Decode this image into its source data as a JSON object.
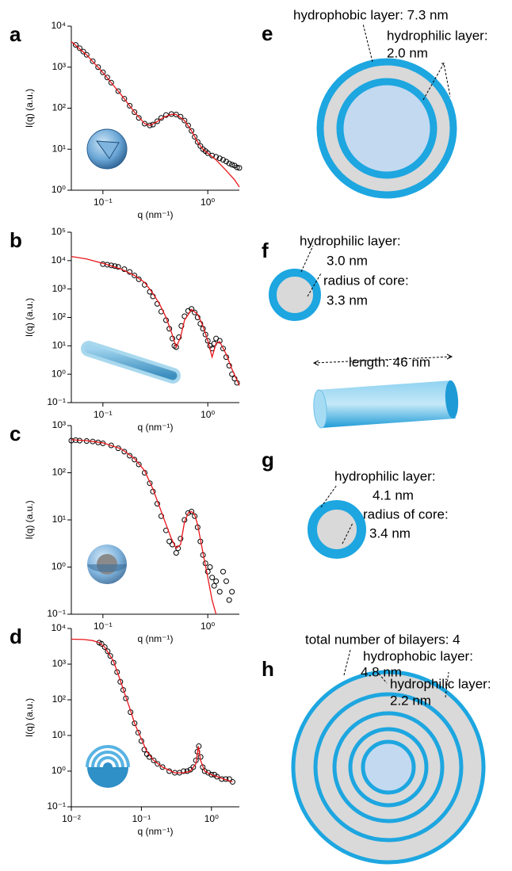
{
  "chart_data": [
    {
      "type": "scatter",
      "panel": "a",
      "x_label": "q (nm⁻¹)",
      "y_label": "I(q) (a.u.)",
      "log_x": true,
      "log_y": true,
      "xlim": [
        0.05,
        2
      ],
      "ylim": [
        1,
        10000
      ],
      "xticks": [
        {
          "value": 0.1,
          "label": "10⁻¹"
        },
        {
          "value": 1,
          "label": "10⁰"
        }
      ],
      "yticks": [
        {
          "value": 1,
          "label": "10⁰"
        },
        {
          "value": 10,
          "label": "10¹"
        },
        {
          "value": 100,
          "label": "10²"
        },
        {
          "value": 1000,
          "label": "10³"
        },
        {
          "value": 10000,
          "label": "10⁴"
        }
      ],
      "series": [
        {
          "color": "#000000",
          "style": "open-circle",
          "x": [
            0.055,
            0.06,
            0.065,
            0.07,
            0.08,
            0.09,
            0.1,
            0.11,
            0.12,
            0.14,
            0.16,
            0.18,
            0.2,
            0.22,
            0.25,
            0.28,
            0.3,
            0.33,
            0.36,
            0.4,
            0.45,
            0.5,
            0.55,
            0.6,
            0.65,
            0.7,
            0.75,
            0.8,
            0.85,
            0.9,
            0.95,
            1.0,
            1.1,
            1.2,
            1.3,
            1.4,
            1.5,
            1.6,
            1.7,
            1.8,
            1.9,
            2.0
          ],
          "values": [
            3500,
            2900,
            2400,
            2000,
            1400,
            1000,
            750,
            560,
            420,
            260,
            170,
            115,
            80,
            58,
            42,
            38,
            40,
            48,
            58,
            68,
            72,
            70,
            62,
            50,
            38,
            28,
            20,
            15,
            12,
            10,
            9,
            8,
            7,
            6.5,
            6,
            5.5,
            5,
            4.5,
            4.2,
            4,
            3.6,
            3.5
          ]
        },
        {
          "color": "#e8161b",
          "style": "line",
          "x": [
            0.05,
            0.07,
            0.1,
            0.15,
            0.2,
            0.25,
            0.28,
            0.32,
            0.38,
            0.45,
            0.5,
            0.6,
            0.7,
            0.8,
            0.9,
            1.0,
            1.2,
            1.5,
            1.8,
            2.0
          ],
          "values": [
            4200,
            2000,
            740,
            210,
            80,
            42,
            38,
            45,
            60,
            71,
            70,
            50,
            28,
            15,
            10,
            8,
            5.5,
            3,
            1.8,
            1.2
          ]
        }
      ]
    },
    {
      "type": "scatter",
      "panel": "b",
      "x_label": "q (nm⁻¹)",
      "y_label": "I(q) (a.u.)",
      "log_x": true,
      "log_y": true,
      "xlim": [
        0.05,
        2
      ],
      "ylim": [
        0.1,
        100000
      ],
      "xticks": [
        {
          "value": 0.1,
          "label": "10⁻¹"
        },
        {
          "value": 1,
          "label": "10⁰"
        }
      ],
      "yticks": [
        {
          "value": 0.1,
          "label": "10⁻¹"
        },
        {
          "value": 1,
          "label": "10⁰"
        },
        {
          "value": 10,
          "label": "10¹"
        },
        {
          "value": 100,
          "label": "10²"
        },
        {
          "value": 1000,
          "label": "10³"
        },
        {
          "value": 10000,
          "label": "10⁴"
        },
        {
          "value": 100000,
          "label": "10⁵"
        }
      ],
      "series": [
        {
          "color": "#000000",
          "style": "open-circle",
          "x": [
            0.1,
            0.11,
            0.12,
            0.13,
            0.14,
            0.16,
            0.18,
            0.2,
            0.22,
            0.25,
            0.28,
            0.3,
            0.33,
            0.36,
            0.4,
            0.43,
            0.46,
            0.48,
            0.5,
            0.53,
            0.56,
            0.6,
            0.65,
            0.7,
            0.75,
            0.8,
            0.85,
            0.9,
            0.95,
            1.0,
            1.05,
            1.1,
            1.15,
            1.2,
            1.3,
            1.4,
            1.5,
            1.6,
            1.7,
            1.8,
            1.9
          ],
          "values": [
            7500,
            7200,
            6800,
            6400,
            6000,
            5000,
            4000,
            3000,
            2200,
            1400,
            800,
            550,
            300,
            160,
            80,
            40,
            18,
            10,
            9,
            20,
            50,
            110,
            170,
            200,
            150,
            100,
            60,
            40,
            25,
            15,
            10,
            8,
            12,
            18,
            15,
            8,
            4,
            2,
            1,
            0.7,
            0.5
          ]
        },
        {
          "color": "#e8161b",
          "style": "line",
          "x": [
            0.05,
            0.07,
            0.1,
            0.15,
            0.2,
            0.25,
            0.3,
            0.35,
            0.4,
            0.45,
            0.5,
            0.55,
            0.6,
            0.7,
            0.8,
            0.9,
            1.0,
            1.1,
            1.2,
            1.3,
            1.5,
            1.7,
            2.0
          ],
          "values": [
            14000,
            11500,
            8000,
            5000,
            3000,
            1700,
            700,
            280,
            100,
            30,
            9,
            20,
            80,
            190,
            130,
            50,
            15,
            4,
            12,
            14,
            5,
            1.5,
            0.4
          ]
        }
      ]
    },
    {
      "type": "scatter",
      "panel": "c",
      "x_label": "q (nm⁻¹)",
      "y_label": "I(q) (a.u.)",
      "log_x": true,
      "log_y": true,
      "xlim": [
        0.05,
        2
      ],
      "ylim": [
        0.1,
        1000
      ],
      "xticks": [
        {
          "value": 0.1,
          "label": "10⁻¹"
        },
        {
          "value": 1,
          "label": "10⁰"
        }
      ],
      "yticks": [
        {
          "value": 0.1,
          "label": "10⁻¹"
        },
        {
          "value": 1,
          "label": "10⁰"
        },
        {
          "value": 10,
          "label": "10¹"
        },
        {
          "value": 100,
          "label": "10²"
        },
        {
          "value": 1000,
          "label": "10³"
        }
      ],
      "series": [
        {
          "color": "#000000",
          "style": "open-circle",
          "x": [
            0.05,
            0.055,
            0.06,
            0.07,
            0.08,
            0.09,
            0.1,
            0.12,
            0.14,
            0.16,
            0.18,
            0.2,
            0.22,
            0.25,
            0.28,
            0.3,
            0.33,
            0.36,
            0.4,
            0.43,
            0.46,
            0.5,
            0.52,
            0.55,
            0.6,
            0.65,
            0.7,
            0.75,
            0.8,
            0.85,
            0.9,
            0.95,
            1.0,
            1.05,
            1.1,
            1.15,
            1.2,
            1.3,
            1.4,
            1.5,
            1.6,
            1.7
          ],
          "values": [
            480,
            490,
            480,
            470,
            460,
            440,
            420,
            380,
            330,
            280,
            230,
            190,
            150,
            100,
            60,
            40,
            22,
            12,
            6,
            3.5,
            3,
            2,
            2.5,
            4,
            10,
            14,
            15,
            12,
            7,
            3.5,
            1.8,
            1.2,
            0.8,
            1,
            0.6,
            0.4,
            0.5,
            0.3,
            0.8,
            0.5,
            0.2,
            0.3
          ]
        },
        {
          "color": "#e8161b",
          "style": "line",
          "x": [
            0.05,
            0.07,
            0.1,
            0.15,
            0.2,
            0.25,
            0.3,
            0.35,
            0.4,
            0.45,
            0.5,
            0.55,
            0.6,
            0.65,
            0.7,
            0.75,
            0.8,
            0.9,
            1.0,
            1.1,
            1.2
          ],
          "values": [
            500,
            480,
            430,
            320,
            200,
            110,
            45,
            18,
            8,
            4,
            2.5,
            3,
            9,
            14,
            15,
            13,
            8,
            2,
            0.6,
            0.2,
            0.1
          ]
        }
      ]
    },
    {
      "type": "scatter",
      "panel": "d",
      "x_label": "q (nm⁻¹)",
      "y_label": "I(q) (a.u.)",
      "log_x": true,
      "log_y": true,
      "xlim": [
        0.01,
        2.5
      ],
      "ylim": [
        0.1,
        10000
      ],
      "xticks": [
        {
          "value": 0.01,
          "label": "10⁻²"
        },
        {
          "value": 0.1,
          "label": "10⁻¹"
        },
        {
          "value": 1,
          "label": "10⁰"
        }
      ],
      "yticks": [
        {
          "value": 0.1,
          "label": "10⁻¹"
        },
        {
          "value": 1,
          "label": "10⁰"
        },
        {
          "value": 10,
          "label": "10¹"
        },
        {
          "value": 100,
          "label": "10²"
        },
        {
          "value": 1000,
          "label": "10³"
        },
        {
          "value": 10000,
          "label": "10⁴"
        }
      ],
      "series": [
        {
          "color": "#000000",
          "style": "open-circle",
          "x": [
            0.025,
            0.027,
            0.03,
            0.033,
            0.036,
            0.04,
            0.045,
            0.05,
            0.055,
            0.06,
            0.07,
            0.08,
            0.09,
            0.1,
            0.11,
            0.12,
            0.13,
            0.15,
            0.17,
            0.2,
            0.25,
            0.3,
            0.35,
            0.4,
            0.45,
            0.5,
            0.55,
            0.6,
            0.63,
            0.66,
            0.7,
            0.75,
            0.8,
            0.9,
            1.0,
            1.1,
            1.2,
            1.4,
            1.6,
            1.8,
            2.0
          ],
          "values": [
            4000,
            3700,
            3000,
            2300,
            1700,
            1100,
            600,
            320,
            190,
            110,
            45,
            22,
            12,
            7,
            4,
            3,
            2.5,
            2,
            1.6,
            1.3,
            1,
            0.9,
            0.9,
            1,
            1,
            1.1,
            1.3,
            2,
            3.5,
            5,
            2.5,
            1.3,
            1,
            0.9,
            0.8,
            0.8,
            0.7,
            0.6,
            0.6,
            0.6,
            0.5
          ]
        },
        {
          "color": "#e8161b",
          "style": "line",
          "x": [
            0.01,
            0.015,
            0.02,
            0.025,
            0.03,
            0.04,
            0.05,
            0.06,
            0.07,
            0.08,
            0.1,
            0.12,
            0.15,
            0.2,
            0.3,
            0.4,
            0.5,
            0.6,
            0.65,
            0.7,
            0.8,
            1.0,
            1.5,
            2.0
          ],
          "values": [
            5000,
            4900,
            4600,
            4000,
            3000,
            1200,
            350,
            120,
            50,
            22,
            8,
            3.5,
            2,
            1.3,
            0.9,
            0.9,
            1,
            1.6,
            5,
            2,
            1,
            0.8,
            0.6,
            0.5
          ]
        }
      ]
    }
  ],
  "diagrams": [
    {
      "panel": "e",
      "labels": [
        "hydrophobic layer: 7.3 nm",
        "hydrophilic layer:",
        "2.0 nm"
      ]
    },
    {
      "panel": "f",
      "labels": [
        "hydrophilic layer:",
        "3.0 nm",
        "radius of core:",
        "3.3 nm",
        "length: 46 nm"
      ]
    },
    {
      "panel": "g",
      "labels": [
        "hydrophilic layer:",
        "4.1 nm",
        "radius of core:",
        "3.4 nm"
      ]
    },
    {
      "panel": "h",
      "labels": [
        "total number of bilayers: 4",
        "hydrophobic layer:",
        "4.8 nm",
        "hydrophilic layer:",
        "2.2 nm"
      ]
    }
  ]
}
